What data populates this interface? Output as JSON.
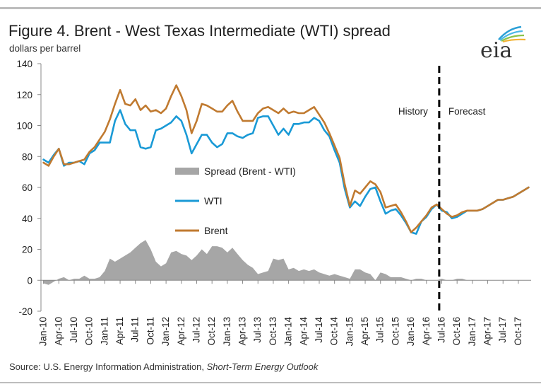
{
  "title": "Figure 4. Brent - West Texas Intermediate (WTI) spread",
  "subtitle": "dollars per barrel",
  "source_prefix": "Source: U.S. Energy Information Administration, ",
  "source_italic": "Short-Term Energy Outlook",
  "logo_text": "eia",
  "colors": {
    "brent": "#c07a30",
    "wti": "#1a9ad6",
    "spread": "#a6a6a6",
    "divider": "#000000"
  },
  "chart_data": {
    "type": "line",
    "ylabel": "dollars per barrel",
    "ylim": [
      -20,
      140
    ],
    "yticks": [
      -20,
      0,
      20,
      40,
      60,
      80,
      100,
      120,
      140
    ],
    "grid": false,
    "legend_placement": "center-left",
    "divider_x": "Jul-16",
    "region_labels": {
      "left": "History",
      "right": "Forecast"
    },
    "xtick_labels": [
      "Jan-10",
      "Apr-10",
      "Jul-10",
      "Oct-10",
      "Jan-11",
      "Apr-11",
      "Jul-11",
      "Oct-11",
      "Jan-12",
      "Apr-12",
      "Jul-12",
      "Oct-12",
      "Jan-13",
      "Apr-13",
      "Jul-13",
      "Oct-13",
      "Jan-14",
      "Apr-14",
      "Jul-14",
      "Oct-14",
      "Jan-15",
      "Apr-15",
      "Jul-15",
      "Oct-15",
      "Jan-16",
      "Apr-16",
      "Jul-16",
      "Oct-16",
      "Jan-17",
      "Apr-17",
      "Jul-17",
      "Oct-17"
    ],
    "x_months": [
      "Jan-10",
      "Feb-10",
      "Mar-10",
      "Apr-10",
      "May-10",
      "Jun-10",
      "Jul-10",
      "Aug-10",
      "Sep-10",
      "Oct-10",
      "Nov-10",
      "Dec-10",
      "Jan-11",
      "Feb-11",
      "Mar-11",
      "Apr-11",
      "May-11",
      "Jun-11",
      "Jul-11",
      "Aug-11",
      "Sep-11",
      "Oct-11",
      "Nov-11",
      "Dec-11",
      "Jan-12",
      "Feb-12",
      "Mar-12",
      "Apr-12",
      "May-12",
      "Jun-12",
      "Jul-12",
      "Aug-12",
      "Sep-12",
      "Oct-12",
      "Nov-12",
      "Dec-12",
      "Jan-13",
      "Feb-13",
      "Mar-13",
      "Apr-13",
      "May-13",
      "Jun-13",
      "Jul-13",
      "Aug-13",
      "Sep-13",
      "Oct-13",
      "Nov-13",
      "Dec-13",
      "Jan-14",
      "Feb-14",
      "Mar-14",
      "Apr-14",
      "May-14",
      "Jun-14",
      "Jul-14",
      "Aug-14",
      "Sep-14",
      "Oct-14",
      "Nov-14",
      "Dec-14",
      "Jan-15",
      "Feb-15",
      "Mar-15",
      "Apr-15",
      "May-15",
      "Jun-15",
      "Jul-15",
      "Aug-15",
      "Sep-15",
      "Oct-15",
      "Nov-15",
      "Dec-15",
      "Jan-16",
      "Feb-16",
      "Mar-16",
      "Apr-16",
      "May-16",
      "Jun-16",
      "Jul-16",
      "Aug-16",
      "Sep-16",
      "Oct-16",
      "Nov-16",
      "Dec-16",
      "Jan-17",
      "Feb-17",
      "Mar-17",
      "Apr-17",
      "May-17",
      "Jun-17",
      "Jul-17",
      "Aug-17",
      "Sep-17",
      "Oct-17",
      "Nov-17",
      "Dec-17"
    ],
    "series": [
      {
        "name": "Spread (Brent - WTI)",
        "type": "area",
        "values": [
          -2,
          -3,
          -1,
          1,
          2,
          0,
          1,
          1,
          3,
          1,
          1,
          2,
          6,
          14,
          12,
          14,
          16,
          18,
          21,
          24,
          26,
          20,
          12,
          9,
          11,
          18,
          19,
          17,
          16,
          13,
          16,
          20,
          17,
          22,
          22,
          21,
          18,
          21,
          17,
          13,
          10,
          8,
          4,
          5,
          6,
          14,
          13,
          14,
          7,
          8,
          6,
          7,
          6,
          7,
          5,
          4,
          3,
          4,
          3,
          2,
          1,
          7,
          7,
          5,
          4,
          0,
          5,
          4,
          2,
          2,
          2,
          1,
          0,
          1,
          1,
          0,
          0,
          0,
          1,
          0,
          0,
          1,
          1,
          0,
          0,
          0,
          0,
          0,
          0,
          0,
          0,
          0,
          0,
          0,
          0,
          0
        ]
      },
      {
        "name": "WTI",
        "type": "line",
        "values": [
          78,
          76,
          81,
          85,
          74,
          76,
          76,
          77,
          75,
          82,
          84,
          89,
          89,
          89,
          103,
          110,
          101,
          97,
          97,
          86,
          85,
          86,
          97,
          98,
          100,
          102,
          106,
          103,
          94,
          82,
          88,
          94,
          94,
          89,
          86,
          88,
          95,
          95,
          93,
          92,
          94,
          95,
          105,
          106,
          106,
          100,
          94,
          98,
          94,
          101,
          101,
          102,
          102,
          105,
          103,
          97,
          93,
          84,
          76,
          59,
          47,
          51,
          48,
          54,
          59,
          60,
          51,
          43,
          45,
          46,
          42,
          37,
          31,
          30,
          38,
          41,
          46,
          49,
          45,
          44,
          40,
          41,
          43,
          45,
          45,
          45,
          46,
          48,
          50,
          52,
          52,
          53,
          54,
          56,
          58,
          60
        ]
      },
      {
        "name": "Brent",
        "type": "line",
        "values": [
          76,
          74,
          80,
          85,
          75,
          75,
          76,
          77,
          78,
          83,
          86,
          91,
          96,
          104,
          114,
          123,
          114,
          113,
          117,
          110,
          113,
          109,
          110,
          108,
          111,
          119,
          126,
          119,
          110,
          95,
          103,
          114,
          113,
          111,
          109,
          109,
          113,
          116,
          109,
          103,
          103,
          103,
          108,
          111,
          112,
          110,
          108,
          111,
          108,
          109,
          108,
          108,
          110,
          112,
          107,
          102,
          95,
          87,
          79,
          62,
          48,
          58,
          56,
          60,
          64,
          62,
          57,
          47,
          48,
          49,
          44,
          38,
          31,
          34,
          38,
          42,
          47,
          49,
          46,
          43,
          41,
          42,
          44,
          45,
          45,
          45,
          46,
          48,
          50,
          52,
          52,
          53,
          54,
          56,
          58,
          60
        ]
      }
    ]
  }
}
